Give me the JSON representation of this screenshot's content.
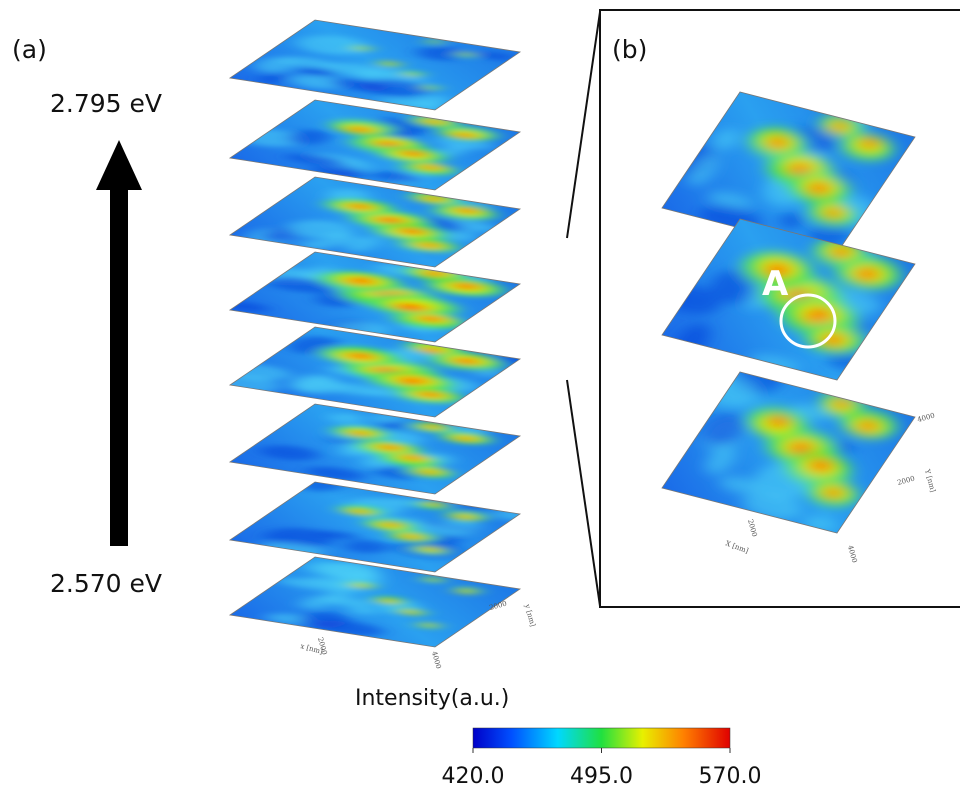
{
  "panel_a": {
    "label": "(a)",
    "energy_top": "2.795 eV",
    "energy_bottom": "2.570 eV",
    "axis_labels": {
      "x": "x [nm]",
      "y": "y [nm]",
      "ticks": [
        "2000",
        "4000"
      ]
    }
  },
  "panel_b": {
    "label": "(b)",
    "marker": "A",
    "axis_labels": {
      "x": "X [nm]",
      "y": "Y [nm]",
      "ticks": [
        "2000",
        "4000"
      ]
    }
  },
  "colorbar": {
    "title": "Intensity(a.u.)",
    "range": [
      420,
      570
    ],
    "ticks": [
      {
        "value": 420,
        "label": "420.0"
      },
      {
        "value": 495,
        "label": "495.0"
      },
      {
        "value": 570,
        "label": "570.0"
      }
    ]
  }
}
